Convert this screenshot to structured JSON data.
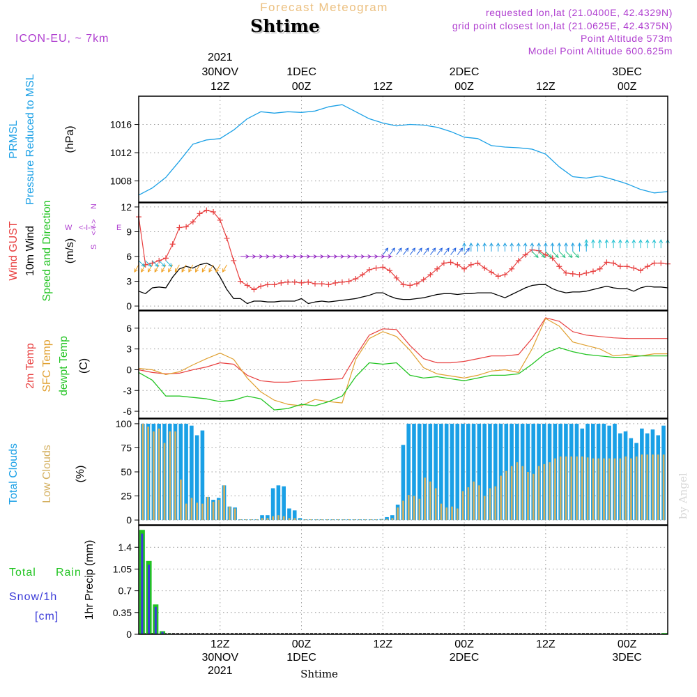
{
  "header": {
    "title": "Forecast Meteogram",
    "location": "Shtime",
    "model": "ICON-EU, ~ 7km",
    "requested": "requested lon,lat (21.0400E, 42.4329N)",
    "grid_point": "grid point closest lon,lat (21.0625E, 42.4375N)",
    "point_altitude": "Point Altitude 573m",
    "model_altitude": "Model Point Altitude 600.625m",
    "credit": "by Angel",
    "footer_location": "Shtime"
  },
  "colors": {
    "pressure": "#1aa0e6",
    "gust": "#e84040",
    "wind": "#000000",
    "direction": "#22c422",
    "temp2m": "#e84040",
    "sfc": "#e0a030",
    "dewpt": "#22c422",
    "total_clouds": "#1aa0e6",
    "low_clouds": "#d4b060",
    "rain": "#22c422",
    "snow": "#3a3ad8",
    "compass": "#b040d0"
  },
  "time_axis": {
    "top": [
      {
        "x": 12,
        "lines": [
          "2021",
          "30NOV",
          "12Z"
        ]
      },
      {
        "x": 24,
        "lines": [
          "1DEC",
          "00Z"
        ]
      },
      {
        "x": 36,
        "lines": [
          "12Z"
        ]
      },
      {
        "x": 48,
        "lines": [
          "2DEC",
          "00Z"
        ]
      },
      {
        "x": 60,
        "lines": [
          "12Z"
        ]
      },
      {
        "x": 72,
        "lines": [
          "3DEC",
          "00Z"
        ]
      }
    ],
    "bottom": [
      {
        "x": 12,
        "lines": [
          "12Z",
          "30NOV",
          "2021"
        ]
      },
      {
        "x": 24,
        "lines": [
          "00Z",
          "1DEC"
        ]
      },
      {
        "x": 36,
        "lines": [
          "12Z"
        ]
      },
      {
        "x": 48,
        "lines": [
          "00Z",
          "2DEC"
        ]
      },
      {
        "x": 60,
        "lines": [
          "12Z"
        ]
      },
      {
        "x": 72,
        "lines": [
          "00Z",
          "3DEC"
        ]
      }
    ]
  },
  "panels": {
    "pressure": {
      "labels": [
        {
          "text": "PRMSL",
          "color": "#1aa0e6"
        },
        {
          "text": "Pressure Reduced to MSL",
          "color": "#1aa0e6"
        },
        {
          "text": "(hPa)",
          "color": "#000000"
        }
      ],
      "ticks": [
        "1008",
        "1012",
        "1016"
      ]
    },
    "wind": {
      "labels": [
        {
          "text": "Wind GUST",
          "color": "#e84040"
        },
        {
          "text": "10m Wind",
          "color": "#000000"
        },
        {
          "text": "Speed and Direction",
          "color": "#22c422"
        },
        {
          "text": "(m/s)",
          "color": "#000000"
        }
      ],
      "ticks": [
        "0",
        "3",
        "6",
        "9",
        "12"
      ],
      "compass": {
        "w": "W",
        "arrow": "<-I->",
        "e": "E",
        "n": "N",
        "s": "S"
      }
    },
    "temp": {
      "labels": [
        {
          "text": "2m Temp",
          "color": "#e84040"
        },
        {
          "text": "SFC Temp",
          "color": "#e0a030"
        },
        {
          "text": "dewpt Temp",
          "color": "#22c422"
        },
        {
          "text": "(C)",
          "color": "#000000"
        }
      ],
      "ticks": [
        "-6",
        "-3",
        "0",
        "3",
        "6"
      ]
    },
    "clouds": {
      "labels": [
        {
          "text": "Total Clouds",
          "color": "#1aa0e6"
        },
        {
          "text": "Low Clouds",
          "color": "#d4b060"
        },
        {
          "text": "(%)",
          "color": "#000000"
        }
      ],
      "ticks": [
        "0",
        "25",
        "50",
        "75",
        "100"
      ]
    },
    "precip": {
      "side_labels": [
        {
          "text": "Total",
          "color": "#22c422"
        },
        {
          "text": "Rain",
          "color": "#22c422"
        },
        {
          "text": "Snow/1h",
          "color": "#3a3ad8"
        },
        {
          "text": "[cm]",
          "color": "#3a3ad8"
        }
      ],
      "ylabel": "1hr Precip (mm)",
      "ticks": [
        "0",
        "0.35",
        "0.7",
        "1.05",
        "1.4"
      ]
    }
  },
  "chart_data": {
    "type": "line",
    "x_unit": "hours from 30NOV 00Z",
    "x_range": [
      0,
      78
    ],
    "pressure": {
      "ylim": [
        1005,
        1020
      ],
      "x": [
        0,
        2,
        4,
        6,
        8,
        10,
        12,
        14,
        16,
        18,
        20,
        22,
        24,
        26,
        28,
        30,
        32,
        34,
        36,
        38,
        40,
        42,
        44,
        46,
        48,
        50,
        52,
        54,
        56,
        58,
        60,
        62,
        64,
        66,
        68,
        70,
        72,
        74,
        76,
        78
      ],
      "y": [
        1006.0,
        1007.0,
        1008.5,
        1010.8,
        1013.2,
        1013.8,
        1014.0,
        1015.2,
        1016.8,
        1017.8,
        1017.6,
        1017.8,
        1017.7,
        1017.9,
        1018.5,
        1018.8,
        1017.8,
        1016.8,
        1016.2,
        1015.8,
        1016.0,
        1015.9,
        1015.6,
        1015.0,
        1014.2,
        1014.0,
        1013.0,
        1012.8,
        1012.7,
        1012.5,
        1011.8,
        1010.0,
        1008.6,
        1008.4,
        1008.7,
        1008.2,
        1007.6,
        1006.8,
        1006.3,
        1006.5
      ]
    },
    "wind": {
      "ylim": [
        -0.5,
        12.5
      ],
      "gust_x": [
        0,
        1,
        2,
        3,
        4,
        5,
        6,
        7,
        8,
        9,
        10,
        11,
        12,
        13,
        14,
        15,
        16,
        17,
        18,
        19,
        20,
        21,
        22,
        23,
        24,
        25,
        26,
        27,
        28,
        29,
        30,
        31,
        32,
        33,
        34,
        35,
        36,
        37,
        38,
        39,
        40,
        41,
        42,
        43,
        44,
        45,
        46,
        47,
        48,
        49,
        50,
        51,
        52,
        53,
        54,
        55,
        56,
        57,
        58,
        59,
        60,
        61,
        62,
        63,
        64,
        65,
        66,
        67,
        68,
        69,
        70,
        71,
        72,
        73,
        74,
        75,
        76,
        77,
        78
      ],
      "gust": [
        10.8,
        5.0,
        5.2,
        5.5,
        5.8,
        7.5,
        9.5,
        9.6,
        10.2,
        11.2,
        11.6,
        11.4,
        10.4,
        8.2,
        5.5,
        3.0,
        2.5,
        2.0,
        2.4,
        2.6,
        2.6,
        2.8,
        2.9,
        2.9,
        2.8,
        2.9,
        2.7,
        2.7,
        2.6,
        2.8,
        2.9,
        3.0,
        3.3,
        3.8,
        4.4,
        4.6,
        4.7,
        4.3,
        3.4,
        2.6,
        2.5,
        2.7,
        3.2,
        3.8,
        4.5,
        5.2,
        5.3,
        5.0,
        4.5,
        5.0,
        5.2,
        4.6,
        4.1,
        3.6,
        3.8,
        4.5,
        5.5,
        6.2,
        6.8,
        6.7,
        6.2,
        5.8,
        4.8,
        4.0,
        3.9,
        3.8,
        4.0,
        4.2,
        4.5,
        5.3,
        5.2,
        4.8,
        4.8,
        4.6,
        4.3,
        4.8,
        5.2,
        5.2,
        5.1
      ],
      "wind_x": [
        0,
        1,
        2,
        3,
        4,
        5,
        6,
        7,
        8,
        9,
        10,
        11,
        12,
        13,
        14,
        15,
        16,
        17,
        18,
        19,
        20,
        21,
        22,
        23,
        24,
        25,
        26,
        27,
        28,
        29,
        30,
        31,
        32,
        33,
        34,
        35,
        36,
        37,
        38,
        39,
        40,
        41,
        42,
        43,
        44,
        45,
        46,
        47,
        48,
        49,
        50,
        51,
        52,
        53,
        54,
        55,
        56,
        57,
        58,
        59,
        60,
        61,
        62,
        63,
        64,
        65,
        66,
        67,
        68,
        69,
        70,
        71,
        72,
        73,
        74,
        75,
        76,
        77,
        78
      ],
      "wind": [
        1.8,
        1.5,
        2.2,
        2.3,
        2.2,
        3.5,
        4.5,
        4.8,
        4.6,
        5.0,
        5.2,
        4.8,
        3.5,
        2.0,
        0.9,
        0.9,
        0.3,
        0.6,
        0.6,
        0.5,
        0.5,
        0.6,
        0.6,
        0.6,
        0.9,
        0.3,
        0.5,
        0.6,
        0.5,
        0.6,
        0.7,
        0.8,
        0.9,
        1.1,
        1.3,
        1.6,
        1.6,
        1.2,
        0.9,
        0.8,
        0.8,
        0.9,
        1.0,
        1.2,
        1.4,
        1.5,
        1.5,
        1.4,
        1.5,
        1.5,
        1.6,
        1.6,
        1.6,
        1.3,
        1.0,
        1.4,
        1.8,
        2.2,
        2.5,
        2.6,
        2.6,
        2.1,
        1.8,
        1.6,
        1.7,
        1.7,
        1.8,
        2.0,
        2.2,
        2.4,
        2.2,
        2.1,
        2.1,
        1.8,
        2.2,
        2.4,
        2.3,
        2.3,
        2.2
      ],
      "arrow_rows": [
        {
          "from": 0,
          "to": 13,
          "y": 5.0,
          "color": "#f0a020",
          "dir": "sw"
        },
        {
          "from": 0,
          "to": 4,
          "y": 5.5,
          "color": "#20b0d0",
          "dir": "se"
        },
        {
          "from": 15,
          "to": 36,
          "y": 6.0,
          "color": "#9020c0",
          "dir": "e"
        },
        {
          "from": 36,
          "to": 48,
          "y": 6.2,
          "color": "#2060e0",
          "dir": "ne"
        },
        {
          "from": 48,
          "to": 66,
          "y": 6.6,
          "color": "#20a0e0",
          "dir": "n"
        },
        {
          "from": 58,
          "to": 64,
          "y": 6.6,
          "color": "#20c080",
          "dir": "se"
        },
        {
          "from": 66,
          "to": 78,
          "y": 7.0,
          "color": "#20c0d0",
          "dir": "n"
        }
      ]
    },
    "temperature": {
      "ylim": [
        -7,
        8.5
      ],
      "x": [
        0,
        2,
        4,
        6,
        8,
        10,
        12,
        14,
        16,
        18,
        20,
        22,
        24,
        26,
        28,
        30,
        32,
        34,
        36,
        38,
        40,
        42,
        44,
        46,
        48,
        50,
        52,
        54,
        56,
        58,
        60,
        62,
        64,
        66,
        68,
        70,
        72,
        74,
        76,
        78
      ],
      "t2m": [
        0.0,
        -0.4,
        -0.6,
        -0.5,
        0.0,
        0.4,
        1.0,
        0.8,
        -0.8,
        -1.6,
        -1.8,
        -1.8,
        -1.6,
        -1.5,
        -1.4,
        -1.3,
        2.0,
        5.0,
        5.9,
        5.8,
        3.5,
        1.6,
        1.0,
        1.0,
        1.2,
        1.6,
        2.0,
        2.0,
        2.2,
        4.5,
        7.5,
        7.0,
        5.5,
        5.0,
        4.8,
        4.6,
        4.5,
        4.5,
        4.5,
        4.5
      ],
      "sfc": [
        0.2,
        0.0,
        -0.7,
        -0.3,
        0.7,
        1.6,
        2.4,
        1.5,
        -1.2,
        -3.2,
        -4.4,
        -5.0,
        -5.2,
        -4.3,
        -4.6,
        -4.8,
        1.5,
        4.5,
        5.5,
        4.8,
        2.8,
        0.3,
        -0.6,
        -0.9,
        -1.2,
        -0.8,
        -0.2,
        0.0,
        -0.4,
        3.0,
        7.4,
        6.3,
        4.0,
        3.5,
        3.0,
        2.0,
        2.2,
        2.0,
        2.3,
        2.3
      ],
      "dewpt": [
        -0.4,
        -1.5,
        -3.8,
        -3.8,
        -4.0,
        -4.2,
        -4.6,
        -4.4,
        -3.8,
        -4.2,
        -5.8,
        -5.6,
        -5.0,
        -5.2,
        -4.6,
        -3.8,
        -1.0,
        1.0,
        0.8,
        1.0,
        -0.8,
        -1.2,
        -1.0,
        -1.3,
        -1.6,
        -1.2,
        -0.8,
        -0.8,
        -0.6,
        0.8,
        2.4,
        3.2,
        2.6,
        2.2,
        2.0,
        1.8,
        1.8,
        2.0,
        2.0,
        2.0
      ]
    },
    "clouds": {
      "ylim": [
        -5,
        105
      ],
      "total": [
        100,
        100,
        100,
        100,
        100,
        100,
        100,
        100,
        100,
        98,
        88,
        93,
        24,
        21,
        23,
        36,
        14,
        13,
        0,
        0,
        0,
        0,
        5,
        5,
        33,
        36,
        35,
        12,
        10,
        2,
        0,
        0,
        0,
        0,
        0,
        0,
        0,
        0,
        0,
        0,
        0,
        0,
        0,
        0,
        1,
        3,
        5,
        16,
        78,
        100,
        100,
        100,
        100,
        100,
        100,
        100,
        100,
        100,
        100,
        100,
        100,
        100,
        100,
        100,
        100,
        100,
        100,
        100,
        100,
        100,
        100,
        100,
        100,
        100,
        100,
        100,
        100,
        100,
        100,
        100,
        100,
        95,
        100,
        100,
        100,
        100,
        98,
        100,
        90,
        92,
        85,
        80,
        95,
        90,
        94,
        88,
        98
      ],
      "low": [
        100,
        97,
        92,
        95,
        80,
        92,
        92,
        42,
        17,
        23,
        18,
        17,
        24,
        19,
        21,
        36,
        14,
        12,
        0,
        0,
        0,
        0,
        2,
        2,
        4,
        5,
        4,
        2,
        2,
        0,
        0,
        0,
        0,
        0,
        0,
        0,
        0,
        0,
        0,
        0,
        0,
        0,
        0,
        0,
        0,
        1,
        2,
        13,
        20,
        26,
        25,
        22,
        44,
        40,
        33,
        17,
        13,
        14,
        12,
        30,
        34,
        40,
        36,
        25,
        33,
        35,
        46,
        51,
        56,
        60,
        56,
        50,
        48,
        56,
        58,
        60,
        64,
        66,
        66,
        66,
        66,
        66,
        65,
        64,
        64,
        64,
        64,
        64,
        64,
        66,
        64,
        66,
        68,
        68,
        68,
        68,
        68
      ]
    },
    "precip": {
      "ylim": [
        0,
        1.75
      ],
      "x": [
        0.5,
        1.5,
        2.5,
        3.5,
        4.5,
        77.5
      ],
      "rain": [
        1.68,
        1.18,
        0.48,
        0.05,
        0.01,
        0.02
      ],
      "snow": [
        1.62,
        1.12,
        0.44,
        0.04,
        0.005,
        0.0
      ]
    }
  }
}
